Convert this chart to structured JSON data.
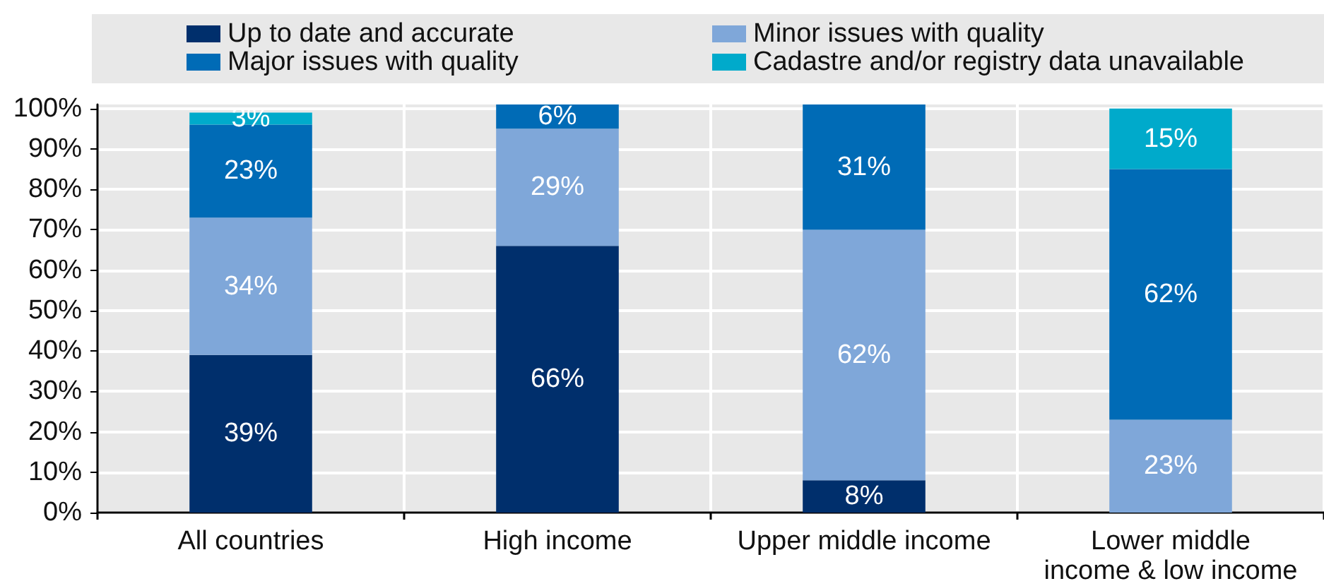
{
  "chart_data": {
    "type": "bar",
    "stacked": true,
    "categories": [
      "All countries",
      "High income",
      "Upper middle income",
      "Lower middle\nincome & low income"
    ],
    "series": [
      {
        "name": "Up to date and accurate",
        "color": "#002f6c",
        "values": [
          39,
          66,
          8,
          null
        ],
        "value_labels": [
          "39%",
          "66%",
          "8%",
          null
        ]
      },
      {
        "name": "Minor issues with quality",
        "color": "#7fa7d9",
        "values": [
          34,
          29,
          62,
          23
        ],
        "value_labels": [
          "34%",
          "29%",
          "62%",
          "23%"
        ]
      },
      {
        "name": "Major issues with quality",
        "color": "#006bb6",
        "values": [
          23,
          6,
          31,
          62
        ],
        "value_labels": [
          "23%",
          "6%",
          "31%",
          "62%"
        ]
      },
      {
        "name": "Cadastre and/or registry data unavailable",
        "color": "#00aacb",
        "values": [
          3,
          null,
          null,
          15
        ],
        "value_labels": [
          "3%",
          null,
          null,
          "15%"
        ]
      }
    ],
    "ylim": [
      0,
      101
    ],
    "yticks": [
      {
        "value": 0,
        "label": "0%"
      },
      {
        "value": 10,
        "label": "10%"
      },
      {
        "value": 20,
        "label": "20%"
      },
      {
        "value": 30,
        "label": "30%"
      },
      {
        "value": 40,
        "label": "40%"
      },
      {
        "value": 50,
        "label": "50%"
      },
      {
        "value": 60,
        "label": "60%"
      },
      {
        "value": 70,
        "label": "70%"
      },
      {
        "value": 80,
        "label": "80%"
      },
      {
        "value": 90,
        "label": "90%"
      },
      {
        "value": 100,
        "label": "100%"
      }
    ],
    "grid": true,
    "legend": "top"
  }
}
